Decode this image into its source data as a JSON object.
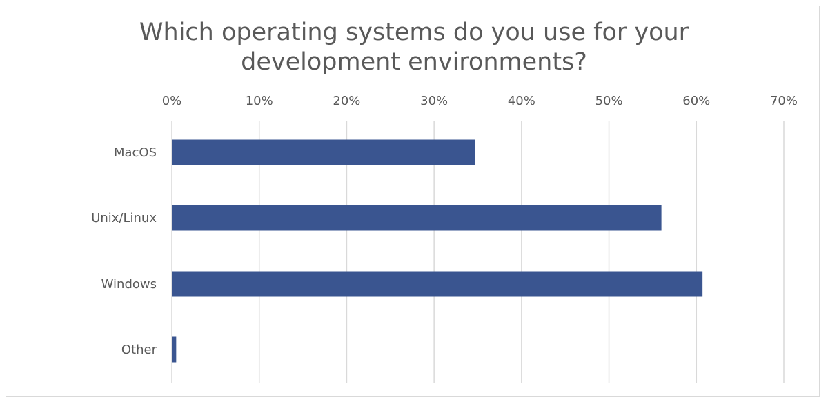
{
  "chart_data": {
    "type": "bar",
    "orientation": "horizontal",
    "title": "Which operating systems do you use for your development environments?",
    "title_lines": [
      "Which operating systems do you use for your",
      "development environments?"
    ],
    "categories": [
      "MacOS",
      "Unix/Linux",
      "Windows",
      "Other"
    ],
    "values": [
      34.7,
      56.0,
      60.7,
      0.5
    ],
    "value_unit": "%",
    "xlim": [
      0,
      70
    ],
    "xticks": [
      0,
      10,
      20,
      30,
      40,
      50,
      60,
      70
    ],
    "xtick_labels": [
      "0%",
      "10%",
      "20%",
      "30%",
      "40%",
      "50%",
      "60%",
      "70%"
    ],
    "xaxis_position": "top",
    "grid": true,
    "legend": "none",
    "bar_color": "#3a5590",
    "grid_color": "#d9d9d9"
  }
}
